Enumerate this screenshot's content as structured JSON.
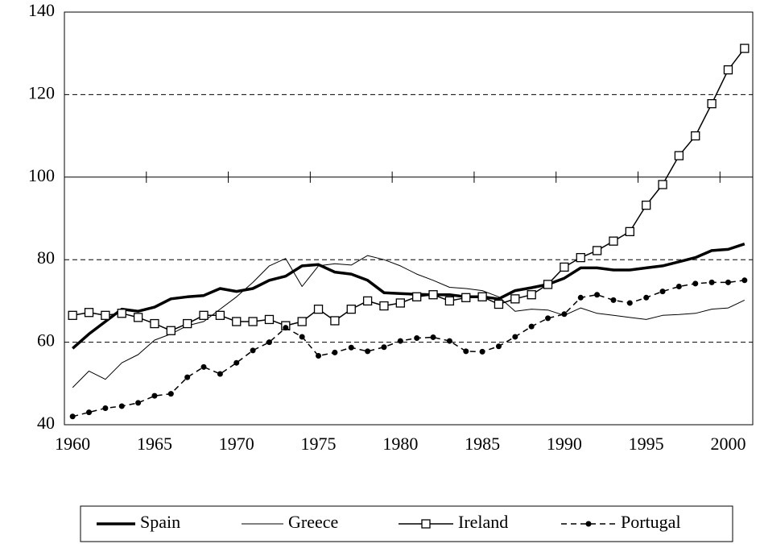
{
  "chart_data": {
    "type": "line",
    "categories": [
      1960,
      null,
      null,
      null,
      null,
      1965,
      null,
      null,
      null,
      null,
      1970,
      null,
      null,
      null,
      null,
      1975,
      null,
      null,
      null,
      null,
      1980,
      null,
      null,
      null,
      null,
      1985,
      null,
      null,
      null,
      null,
      1990,
      null,
      null,
      null,
      null,
      1995,
      null,
      null,
      null,
      null,
      2000,
      null
    ],
    "ylim": [
      40,
      140
    ],
    "yticks": [
      40,
      60,
      80,
      100,
      120,
      140
    ],
    "grid": true,
    "legend": "bottom",
    "series": [
      {
        "name": "Spain",
        "color": "#000000",
        "width": 3.5,
        "marker": "none",
        "dash": false,
        "values": [
          58.5,
          62,
          65,
          68,
          67.5,
          68.5,
          70.5,
          71,
          71.3,
          73,
          72.3,
          73,
          75,
          76,
          78.5,
          78.8,
          77,
          76.5,
          75,
          72,
          71.8,
          71.6,
          71.5,
          71.5,
          71,
          71,
          70.5,
          72.5,
          73.2,
          74,
          75.5,
          78,
          78,
          77.5,
          77.5,
          78,
          78.5,
          79.5,
          80.5,
          82.2,
          82.5,
          83.8
        ]
      },
      {
        "name": "Greece",
        "color": "#000000",
        "width": 1,
        "marker": "none",
        "dash": false,
        "values": [
          49,
          53,
          51,
          55,
          57,
          60.5,
          62,
          64,
          65,
          68,
          71,
          74.5,
          78.5,
          80.3,
          73.5,
          78.5,
          79,
          78.7,
          81,
          80,
          78.5,
          76.5,
          75,
          73.3,
          73,
          72.5,
          71,
          67.5,
          68,
          67.8,
          66.5,
          68.3,
          67,
          66.5,
          66,
          65.5,
          66.5,
          66.7,
          67,
          68,
          68.3,
          70.2
        ]
      },
      {
        "name": "Ireland",
        "color": "#000000",
        "width": 1.5,
        "marker": "square",
        "dash": false,
        "values": [
          66.5,
          67.2,
          66.5,
          67,
          66,
          64.5,
          62.8,
          64.5,
          66.5,
          66.5,
          65,
          65,
          65.5,
          64,
          65,
          68,
          65.2,
          68,
          70,
          68.8,
          69.5,
          71,
          71.5,
          70,
          70.8,
          71,
          69.2,
          70.5,
          71.5,
          74,
          78.2,
          80.5,
          82.2,
          84.5,
          86.8,
          93.2,
          98.2,
          105.2,
          110,
          117.8,
          126,
          131.2
        ]
      },
      {
        "name": "Portugal",
        "color": "#000000",
        "width": 1.5,
        "marker": "circle",
        "dash": true,
        "values": [
          42,
          43,
          44,
          44.5,
          45.3,
          47,
          47.5,
          51.5,
          54,
          52.3,
          55,
          58,
          60,
          63.5,
          61.3,
          56.7,
          57.5,
          58.7,
          57.8,
          58.8,
          60.3,
          61,
          61.2,
          60.3,
          57.8,
          57.7,
          59,
          61.3,
          63.8,
          65.8,
          66.8,
          70.8,
          71.5,
          70.2,
          69.5,
          70.8,
          72.3,
          73.5,
          74.2,
          74.5,
          74.5,
          75
        ]
      }
    ]
  }
}
